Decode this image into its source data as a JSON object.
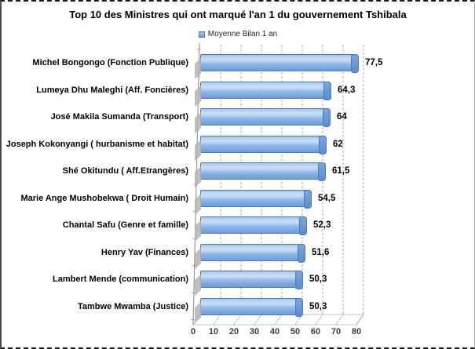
{
  "chart_data": {
    "type": "bar",
    "orientation": "horizontal",
    "style_3d": true,
    "title": "Top 10 des Ministres qui ont marqué l'an 1 du gouvernement Tshibala",
    "legend_label": "Moyenne Bilan 1 an",
    "legend_position": "top",
    "categories": [
      "Michel Bongongo (Fonction Publique)",
      "Lumeya Dhu Maleghi (Aff. Foncières)",
      "José Makila Sumanda (Transport)",
      "Joseph Kokonyangi ( hurbanisme et habitat)",
      "Shé Okitundu ( Aff.Etrangères)",
      "Marie Ange Mushobekwa ( Droit Humain)",
      "Chantal Safu (Genre et famille)",
      "Henry Yav (Finances)",
      "Lambert Mende (communication)",
      "Tambwe Mwamba (Justice)"
    ],
    "series": [
      {
        "name": "Moyenne Bilan 1 an",
        "values": [
          77.5,
          64.3,
          64,
          62,
          61.5,
          54.5,
          52.3,
          51.6,
          50.3,
          50.3
        ],
        "value_labels": [
          "77,5",
          "64,3",
          "64",
          "62",
          "61,5",
          "54,5",
          "52,3",
          "51,6",
          "50,3",
          "50,3"
        ]
      }
    ],
    "xlabel": "",
    "ylabel": "",
    "xlim": [
      0,
      80
    ],
    "xticks": [
      "0",
      "10",
      "20",
      "30",
      "40",
      "50",
      "60",
      "70",
      "80"
    ],
    "grid": "vertical-dashed",
    "colors": {
      "bar_top": "#9ec5f0",
      "bar_highlight": "#c6dcf6",
      "bar_mid": "#8fb9ea",
      "bar_bottom": "#6f9cd6",
      "bar_border": "#4a7abc",
      "cap_dark": "#5d8cc9",
      "gridline": "#ababab",
      "axis": "#9a9a9a",
      "floor_tick": "#9a9a9a",
      "shadow": "#b4b4b4",
      "text": "#000000",
      "tick_text": "#3d3d3d"
    }
  }
}
